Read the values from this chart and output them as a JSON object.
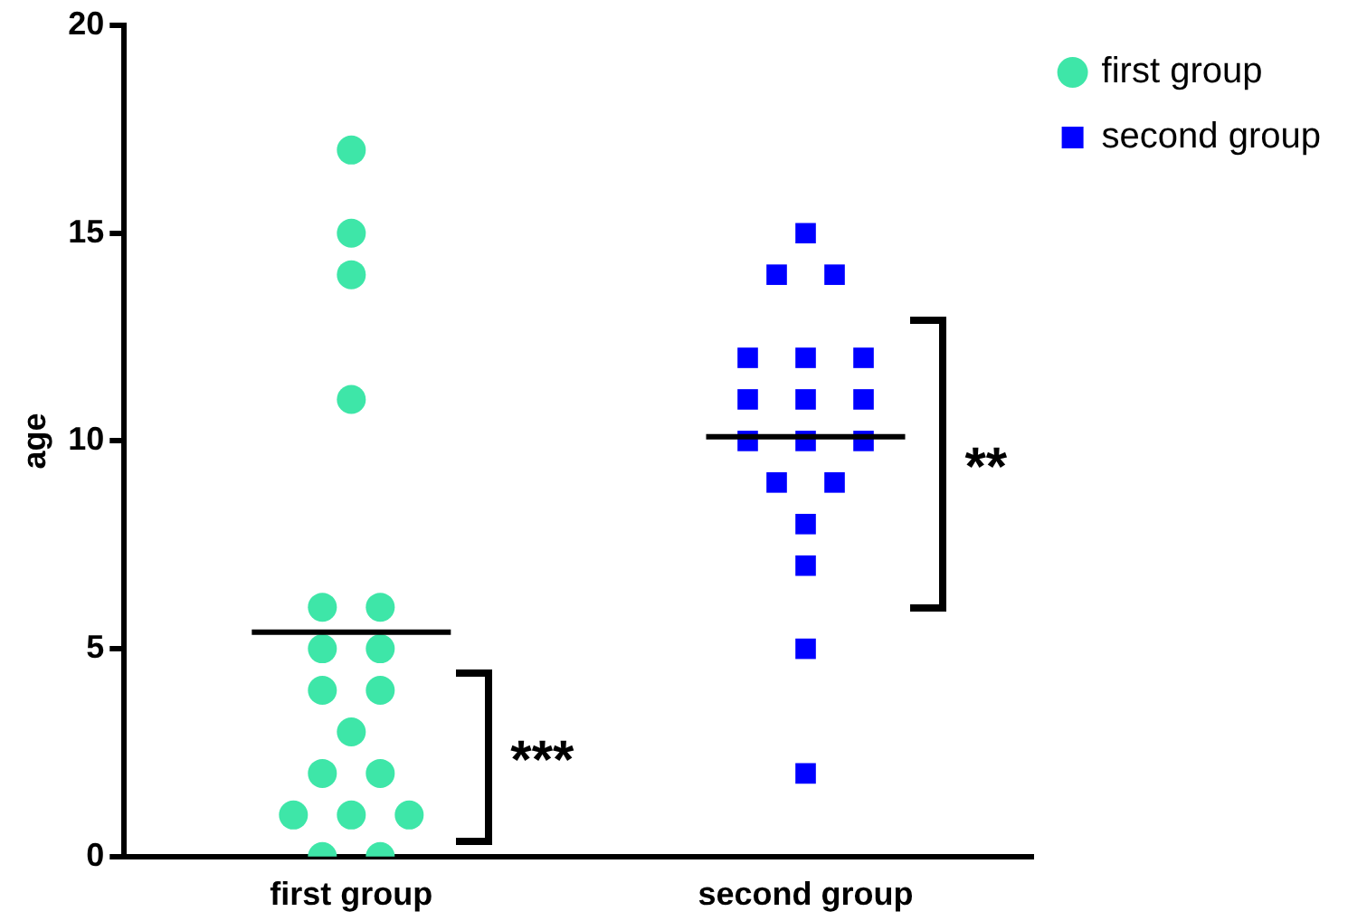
{
  "chart_data": {
    "type": "scatter",
    "ylabel": "age",
    "categories": [
      "first group",
      "second group"
    ],
    "ylim": [
      0,
      20
    ],
    "yticks": [
      0,
      5,
      10,
      15,
      20
    ],
    "grid": false,
    "legend": "top right",
    "series": [
      {
        "name": "first group",
        "color": "#3ee6a8",
        "marker": "circle",
        "x": [
          "first group",
          "first group",
          "first group",
          "first group",
          "first group",
          "first group",
          "first group",
          "first group",
          "first group",
          "first group",
          "first group",
          "first group",
          "first group",
          "first group",
          "first group",
          "first group",
          "first group",
          "first group"
        ],
        "values": [
          17,
          15,
          14,
          11,
          6,
          6,
          5,
          5,
          4,
          4,
          3,
          2,
          2,
          1,
          1,
          1,
          0,
          0
        ]
      },
      {
        "name": "second group",
        "color": "#0000ff",
        "marker": "square",
        "x": [
          "second group",
          "second group",
          "second group",
          "second group",
          "second group",
          "second group",
          "second group",
          "second group",
          "second group",
          "second group",
          "second group",
          "second group",
          "second group",
          "second group",
          "second group",
          "second group",
          "second group",
          "second group"
        ],
        "values": [
          15,
          14,
          14,
          12,
          12,
          12,
          11,
          11,
          11,
          10,
          10,
          10,
          9,
          9,
          8,
          7,
          5,
          2
        ]
      }
    ],
    "ref_lines": [
      {
        "axis": "y",
        "value": 5.4,
        "color": "#000000"
      },
      {
        "axis": "y",
        "value": 10.1,
        "color": "#000000"
      }
    ],
    "annotations": [
      "***",
      "**"
    ]
  }
}
